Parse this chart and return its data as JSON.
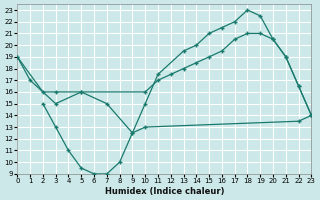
{
  "xlabel": "Humidex (Indice chaleur)",
  "bg_color": "#cce8e8",
  "grid_color": "#ffffff",
  "line_color": "#1a7a6e",
  "xlim": [
    0,
    23
  ],
  "ylim": [
    9,
    23.5
  ],
  "xticks": [
    0,
    1,
    2,
    3,
    4,
    5,
    6,
    7,
    8,
    9,
    10,
    11,
    12,
    13,
    14,
    15,
    16,
    17,
    18,
    19,
    20,
    21,
    22,
    23
  ],
  "yticks": [
    9,
    10,
    11,
    12,
    13,
    14,
    15,
    16,
    17,
    18,
    19,
    20,
    21,
    22,
    23
  ],
  "line_top_x": [
    0,
    1,
    3,
    5,
    7,
    9,
    10,
    11,
    13,
    14,
    15,
    16,
    17,
    18,
    19,
    20,
    21,
    22,
    23
  ],
  "line_top_y": [
    19,
    17,
    15,
    16,
    15,
    12.5,
    15,
    17.5,
    19.5,
    20,
    21,
    21.5,
    22,
    23,
    22.5,
    20.5,
    19,
    16.5,
    14
  ],
  "line_mid_x": [
    0,
    2,
    3,
    5,
    10,
    11,
    12,
    13,
    14,
    15,
    16,
    17,
    18,
    19,
    20,
    21,
    22,
    23
  ],
  "line_mid_y": [
    19,
    16,
    16,
    16,
    16,
    17,
    17.5,
    18,
    18.5,
    19,
    19.5,
    20.5,
    21,
    21,
    20.5,
    19,
    16.5,
    14
  ],
  "line_bot_x": [
    2,
    3,
    4,
    5,
    6,
    7,
    8,
    9,
    10,
    22,
    23
  ],
  "line_bot_y": [
    15,
    13,
    11,
    9.5,
    9,
    9,
    10,
    12.5,
    13,
    13.5,
    14
  ]
}
